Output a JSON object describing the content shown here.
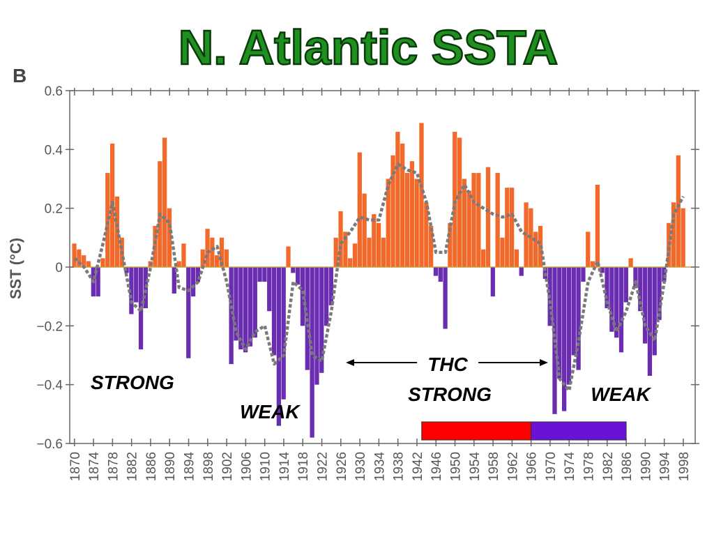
{
  "chart_data": {
    "type": "bar",
    "title": "N. Atlantic SSTA",
    "panel_label": "B",
    "y_label": "SST (°C)",
    "colors": {
      "positive": "#f2692a",
      "negative": "#6a2db2",
      "smooth": "#7a7a7a"
    },
    "x": [
      1870,
      1871,
      1872,
      1873,
      1874,
      1875,
      1876,
      1877,
      1878,
      1879,
      1880,
      1881,
      1882,
      1883,
      1884,
      1885,
      1886,
      1887,
      1888,
      1889,
      1890,
      1891,
      1892,
      1893,
      1894,
      1895,
      1896,
      1897,
      1898,
      1899,
      1900,
      1901,
      1902,
      1903,
      1904,
      1905,
      1906,
      1907,
      1908,
      1909,
      1910,
      1911,
      1912,
      1913,
      1914,
      1915,
      1916,
      1917,
      1918,
      1919,
      1920,
      1921,
      1922,
      1923,
      1924,
      1925,
      1926,
      1927,
      1928,
      1929,
      1930,
      1931,
      1932,
      1933,
      1934,
      1935,
      1936,
      1937,
      1938,
      1939,
      1940,
      1941,
      1942,
      1943,
      1944,
      1945,
      1946,
      1947,
      1948,
      1949,
      1950,
      1951,
      1952,
      1953,
      1954,
      1955,
      1956,
      1957,
      1958,
      1959,
      1960,
      1961,
      1962,
      1963,
      1964,
      1965,
      1966,
      1967,
      1968,
      1969,
      1970,
      1971,
      1972,
      1973,
      1974,
      1975,
      1976,
      1977,
      1978,
      1979,
      1980,
      1981,
      1982,
      1983,
      1984,
      1985,
      1986,
      1987,
      1988,
      1989,
      1990,
      1991,
      1992,
      1993,
      1994,
      1995,
      1996,
      1997,
      1998
    ],
    "values": [
      0.08,
      0.06,
      0.04,
      0.02,
      -0.1,
      -0.1,
      0.03,
      0.32,
      0.42,
      0.24,
      0.1,
      -0.02,
      -0.16,
      -0.12,
      -0.28,
      -0.14,
      0.02,
      0.14,
      0.36,
      0.44,
      0.2,
      -0.09,
      0.02,
      0.08,
      -0.31,
      -0.1,
      -0.05,
      0.06,
      0.13,
      0.1,
      0.04,
      0.1,
      0.06,
      -0.33,
      -0.25,
      -0.28,
      -0.29,
      -0.27,
      -0.24,
      -0.05,
      -0.05,
      -0.15,
      -0.3,
      -0.54,
      -0.45,
      0.07,
      -0.02,
      -0.06,
      -0.2,
      -0.35,
      -0.58,
      -0.4,
      -0.36,
      -0.2,
      -0.13,
      0.1,
      0.19,
      0.12,
      0.03,
      0.08,
      0.39,
      0.25,
      0.1,
      0.18,
      0.15,
      0.1,
      0.3,
      0.38,
      0.46,
      0.42,
      0.32,
      0.36,
      0.3,
      0.49,
      0.22,
      0.14,
      -0.03,
      -0.05,
      -0.21,
      0.15,
      0.46,
      0.44,
      0.3,
      0.26,
      0.32,
      0.32,
      0.06,
      0.34,
      -0.1,
      0.32,
      0.1,
      0.27,
      0.27,
      0.06,
      -0.03,
      0.22,
      0.2,
      0.12,
      0.14,
      -0.04,
      -0.2,
      -0.5,
      -0.38,
      -0.49,
      -0.4,
      -0.3,
      -0.35,
      -0.05,
      0.12,
      0.02,
      0.28,
      -0.02,
      -0.14,
      -0.22,
      -0.24,
      -0.29,
      -0.12,
      0.03,
      -0.07,
      -0.15,
      -0.26,
      -0.37,
      -0.3,
      -0.18,
      -0.05,
      0.15,
      0.22,
      0.38,
      0.2
    ],
    "smooth": {
      "x": [
        1870,
        1872,
        1874,
        1876,
        1878,
        1880,
        1882,
        1884,
        1886,
        1888,
        1890,
        1892,
        1894,
        1896,
        1898,
        1900,
        1902,
        1904,
        1906,
        1908,
        1910,
        1912,
        1914,
        1916,
        1918,
        1920,
        1922,
        1924,
        1926,
        1928,
        1930,
        1932,
        1934,
        1936,
        1938,
        1940,
        1942,
        1944,
        1946,
        1948,
        1950,
        1952,
        1954,
        1956,
        1958,
        1960,
        1962,
        1964,
        1966,
        1968,
        1970,
        1972,
        1974,
        1976,
        1978,
        1980,
        1982,
        1984,
        1986,
        1988,
        1990,
        1992,
        1994,
        1996,
        1998
      ],
      "values": [
        0.03,
        0.0,
        -0.05,
        0.08,
        0.22,
        0.05,
        -0.12,
        -0.15,
        0.0,
        0.18,
        0.15,
        -0.07,
        -0.08,
        -0.05,
        0.05,
        0.07,
        -0.05,
        -0.22,
        -0.28,
        -0.22,
        -0.2,
        -0.33,
        -0.3,
        -0.05,
        -0.08,
        -0.3,
        -0.32,
        -0.15,
        0.08,
        0.12,
        0.17,
        0.16,
        0.16,
        0.28,
        0.35,
        0.33,
        0.32,
        0.22,
        0.05,
        0.05,
        0.22,
        0.28,
        0.22,
        0.2,
        0.18,
        0.17,
        0.18,
        0.12,
        0.1,
        0.08,
        -0.12,
        -0.38,
        -0.42,
        -0.25,
        -0.05,
        0.02,
        -0.12,
        -0.22,
        -0.15,
        -0.05,
        -0.2,
        -0.25,
        -0.05,
        0.18,
        0.24
      ]
    },
    "xlim": [
      1869,
      2000.5
    ],
    "ylim": [
      -0.6,
      0.6
    ],
    "xticks": [
      1870,
      1874,
      1878,
      1882,
      1886,
      1890,
      1894,
      1898,
      1902,
      1906,
      1910,
      1914,
      1918,
      1922,
      1926,
      1930,
      1934,
      1938,
      1942,
      1946,
      1950,
      1954,
      1958,
      1962,
      1966,
      1970,
      1974,
      1978,
      1982,
      1986,
      1990,
      1994,
      1998
    ],
    "yticks": [
      0.6,
      0.4,
      0.2,
      0,
      {
        "value": -0.2,
        "label": "−0.2"
      },
      {
        "value": -0.4,
        "label": "−0.4"
      },
      {
        "value": -0.6,
        "label": "−0.6"
      }
    ],
    "periods": [
      {
        "start": 1943,
        "end": 1966,
        "color": "#ff0000"
      },
      {
        "start": 1966,
        "end": 1986,
        "color": "#6a12d6"
      }
    ],
    "annotations": [
      "STRONG",
      "WEAK",
      "THC",
      "STRONG",
      "WEAK"
    ]
  }
}
